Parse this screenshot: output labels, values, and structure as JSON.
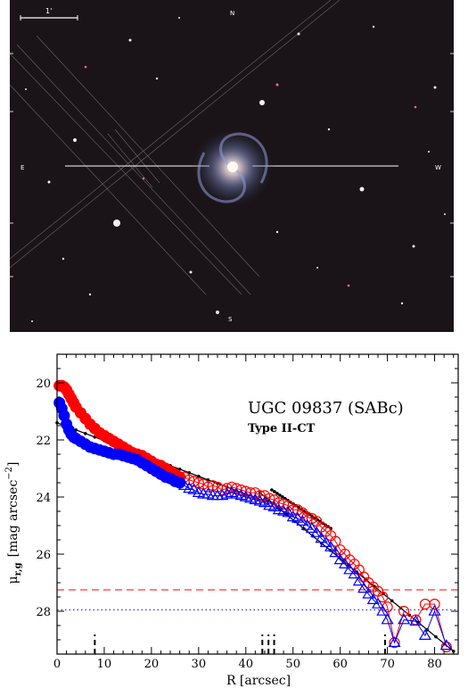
{
  "image_panel": {
    "scale_bar_label": "1'",
    "compass": {
      "north": "N",
      "south": "S",
      "east": "E",
      "west": "W"
    }
  },
  "chart_data": {
    "type": "scatter",
    "title": "UGC 09837 (SABc)",
    "subtitle": "Type II-CT",
    "xlabel": "R [arcsec]",
    "ylabel_main": "μ",
    "ylabel_sub": "r,g",
    "ylabel_rest": "[mag arcsec",
    "ylabel_sup": "−2",
    "ylabel_close": "]",
    "xlim": [
      0,
      85
    ],
    "ylim": [
      29.5,
      19.0
    ],
    "xticks": [
      0,
      10,
      20,
      30,
      40,
      50,
      60,
      70,
      80
    ],
    "yticks": [
      20,
      22,
      24,
      26,
      28
    ],
    "grid": false,
    "colors": {
      "r_band": "#ff0000",
      "g_band": "#0000ff",
      "fit": "#000000"
    },
    "r_limit_mag": 27.25,
    "g_limit_mag": 27.95,
    "break_markers": [
      8,
      43.5,
      44.8,
      46,
      69.5
    ],
    "series": [
      {
        "band": "r",
        "inner_profile": {
          "x": [
            0.5,
            1,
            1.5,
            2,
            2.5,
            3,
            3.5,
            4,
            5,
            6,
            7,
            8,
            9,
            10,
            11,
            12,
            13,
            14,
            15,
            16,
            17,
            18,
            19,
            20,
            21,
            22,
            23,
            24,
            25,
            26
          ],
          "y": [
            20.1,
            20.1,
            20.15,
            20.25,
            20.4,
            20.55,
            20.7,
            20.85,
            21.05,
            21.25,
            21.45,
            21.6,
            21.75,
            21.85,
            21.95,
            22.05,
            22.15,
            22.25,
            22.35,
            22.45,
            22.5,
            22.55,
            22.65,
            22.75,
            22.85,
            22.9,
            23.0,
            23.1,
            23.2,
            23.3
          ]
        },
        "outer_profile": {
          "x": [
            27,
            28,
            29,
            30,
            31,
            32,
            33,
            34,
            35,
            36,
            37,
            38,
            39,
            40,
            41,
            42,
            43,
            44,
            45,
            46,
            47,
            48,
            49,
            50,
            51,
            52,
            53,
            54,
            55,
            56,
            57,
            58,
            59,
            60,
            61,
            62,
            63,
            64,
            65,
            66,
            67,
            68,
            69,
            70,
            71.5,
            73.5,
            76,
            78,
            80,
            82.5
          ],
          "y": [
            23.3,
            23.4,
            23.45,
            23.5,
            23.55,
            23.65,
            23.6,
            23.65,
            23.75,
            23.7,
            23.65,
            23.7,
            23.75,
            23.8,
            23.85,
            23.85,
            23.95,
            23.95,
            24.05,
            24.1,
            24.2,
            24.25,
            24.3,
            24.45,
            24.45,
            24.55,
            24.7,
            24.75,
            24.85,
            25.05,
            25.2,
            25.35,
            25.55,
            25.85,
            26.0,
            26.2,
            26.35,
            26.55,
            26.8,
            27.0,
            27.15,
            27.3,
            27.5,
            27.85,
            29.1,
            28.0,
            28.3,
            27.75,
            27.75,
            29.25
          ]
        }
      },
      {
        "band": "g",
        "inner_profile": {
          "x": [
            0.5,
            1,
            1.5,
            2,
            2.5,
            3,
            3.5,
            4,
            5,
            6,
            7,
            8,
            9,
            10,
            11,
            12,
            13,
            14,
            15,
            16,
            17,
            18,
            19,
            20,
            21,
            22,
            23,
            24,
            25,
            26
          ],
          "y": [
            20.7,
            20.9,
            21.15,
            21.45,
            21.65,
            21.8,
            21.9,
            21.95,
            22.05,
            22.15,
            22.25,
            22.3,
            22.35,
            22.4,
            22.45,
            22.5,
            22.5,
            22.55,
            22.6,
            22.65,
            22.7,
            22.8,
            22.9,
            23.0,
            23.1,
            23.2,
            23.3,
            23.35,
            23.45,
            23.5
          ]
        },
        "outer_profile": {
          "x": [
            27,
            28,
            29,
            30,
            31,
            32,
            33,
            34,
            35,
            36,
            37,
            38,
            39,
            40,
            41,
            42,
            43,
            44,
            45,
            46,
            47,
            48,
            49,
            50,
            51,
            52,
            53,
            54,
            55,
            56,
            57,
            58,
            59,
            60,
            61,
            62,
            63,
            64,
            65,
            66,
            67,
            68,
            69,
            70,
            71.5,
            73.5,
            76,
            78,
            80,
            82.5
          ],
          "y": [
            23.6,
            23.7,
            23.75,
            23.85,
            23.9,
            23.9,
            23.95,
            23.95,
            23.95,
            23.9,
            23.85,
            23.9,
            23.95,
            24.0,
            24.05,
            24.1,
            24.15,
            24.2,
            24.3,
            24.35,
            24.45,
            24.5,
            24.55,
            24.7,
            24.75,
            24.85,
            25.0,
            25.1,
            25.25,
            25.45,
            25.6,
            25.75,
            25.95,
            26.2,
            26.35,
            26.55,
            26.7,
            26.95,
            27.2,
            27.4,
            27.6,
            27.75,
            28.0,
            28.3,
            29.1,
            28.3,
            28.35,
            28.85,
            28.0,
            29.2
          ]
        }
      }
    ],
    "fits": [
      {
        "name": "inner",
        "x": [
          0,
          44
        ],
        "y": [
          21.4,
          24.15
        ]
      },
      {
        "name": "middle",
        "x": [
          45.5,
          58
        ],
        "y": [
          23.75,
          25.1
        ]
      },
      {
        "name": "outer",
        "x": [
          43,
          84
        ],
        "y": [
          23.85,
          29.4
        ]
      }
    ]
  }
}
